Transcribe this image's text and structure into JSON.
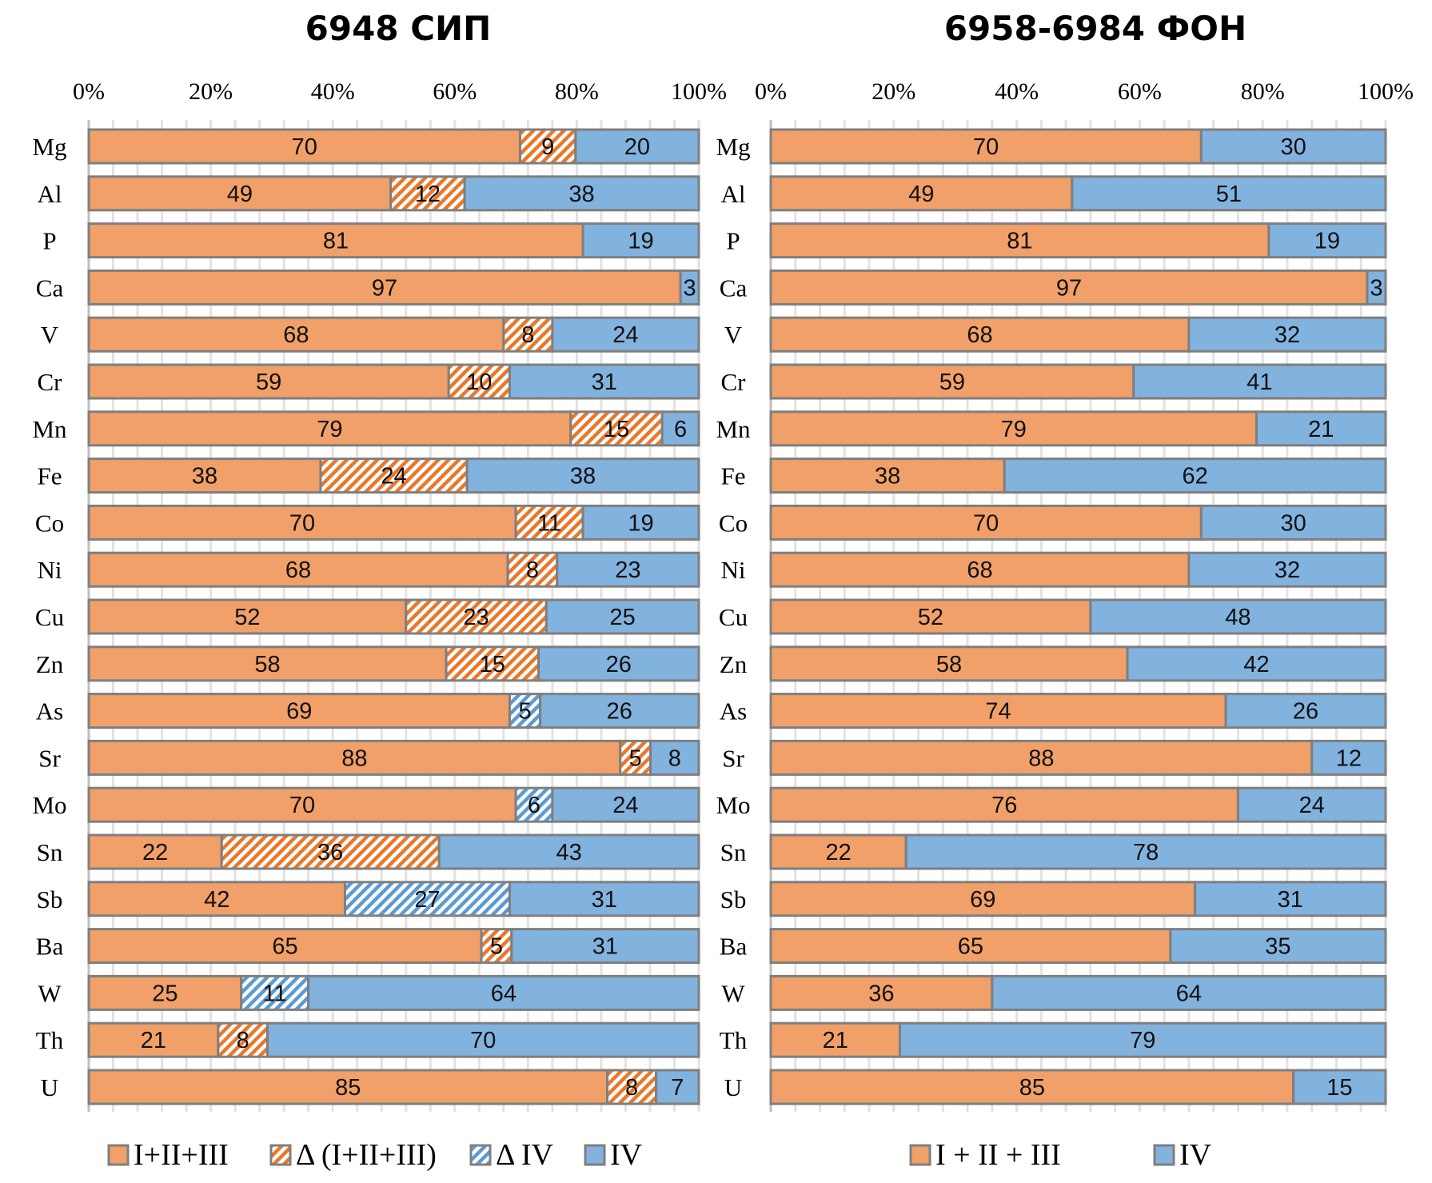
{
  "colors": {
    "base": "#F0A068",
    "delta_base_stripe": "#E8782A",
    "delta_iv_stripe": "#5B9BD5",
    "iv": "#82B2DE",
    "border": "#7F7F7F",
    "grid": "#E2E2E2",
    "axis": "#BFBFBF"
  },
  "chart_data": [
    {
      "type": "bar",
      "orientation": "horizontal",
      "stacked": "percent",
      "title": "6948 СИП",
      "xlabel": "",
      "ylabel": "",
      "xlim": [
        0,
        100
      ],
      "x_ticks": [
        "0%",
        "20%",
        "40%",
        "60%",
        "80%",
        "100%"
      ],
      "grid": true,
      "legend_position": "bottom",
      "categories": [
        "Mg",
        "Al",
        "P",
        "Ca",
        "V",
        "Cr",
        "Mn",
        "Fe",
        "Co",
        "Ni",
        "Cu",
        "Zn",
        "As",
        "Sr",
        "Mo",
        "Sn",
        "Sb",
        "Ba",
        "W",
        "Th",
        "U"
      ],
      "series": [
        {
          "name": "I+II+III",
          "style": "solid-orange",
          "values": [
            70,
            49,
            81,
            97,
            68,
            59,
            79,
            38,
            70,
            68,
            52,
            58,
            69,
            88,
            70,
            22,
            42,
            65,
            25,
            21,
            85
          ]
        },
        {
          "name": "Δ (I+II+III)",
          "style": "hatched-orange",
          "values": [
            9,
            12,
            null,
            null,
            8,
            10,
            15,
            24,
            11,
            8,
            23,
            15,
            null,
            5,
            null,
            36,
            null,
            5,
            null,
            8,
            8
          ]
        },
        {
          "name": "Δ IV",
          "style": "hatched-blue",
          "values": [
            null,
            null,
            null,
            null,
            null,
            null,
            null,
            null,
            null,
            null,
            null,
            null,
            5,
            null,
            6,
            null,
            27,
            null,
            11,
            null,
            null
          ]
        },
        {
          "name": "IV",
          "style": "solid-blue",
          "values": [
            20,
            38,
            19,
            3,
            24,
            31,
            6,
            38,
            19,
            23,
            25,
            26,
            26,
            8,
            24,
            43,
            31,
            31,
            64,
            70,
            7
          ]
        }
      ]
    },
    {
      "type": "bar",
      "orientation": "horizontal",
      "stacked": "percent",
      "title": "6958-6984 ФОН",
      "xlabel": "",
      "ylabel": "",
      "xlim": [
        0,
        100
      ],
      "x_ticks": [
        "0%",
        "20%",
        "40%",
        "60%",
        "80%",
        "100%"
      ],
      "grid": true,
      "legend_position": "bottom",
      "categories": [
        "Mg",
        "Al",
        "P",
        "Ca",
        "V",
        "Cr",
        "Mn",
        "Fe",
        "Co",
        "Ni",
        "Cu",
        "Zn",
        "As",
        "Sr",
        "Mo",
        "Sn",
        "Sb",
        "Ba",
        "W",
        "Th",
        "U"
      ],
      "series": [
        {
          "name": "I + II + III",
          "style": "solid-orange",
          "values": [
            70,
            49,
            81,
            97,
            68,
            59,
            79,
            38,
            70,
            68,
            52,
            58,
            74,
            88,
            76,
            22,
            69,
            65,
            36,
            21,
            85
          ]
        },
        {
          "name": "IV",
          "style": "solid-blue",
          "values": [
            30,
            51,
            19,
            3,
            32,
            41,
            21,
            62,
            30,
            32,
            48,
            42,
            26,
            12,
            24,
            78,
            31,
            35,
            64,
            79,
            15
          ]
        }
      ]
    }
  ]
}
